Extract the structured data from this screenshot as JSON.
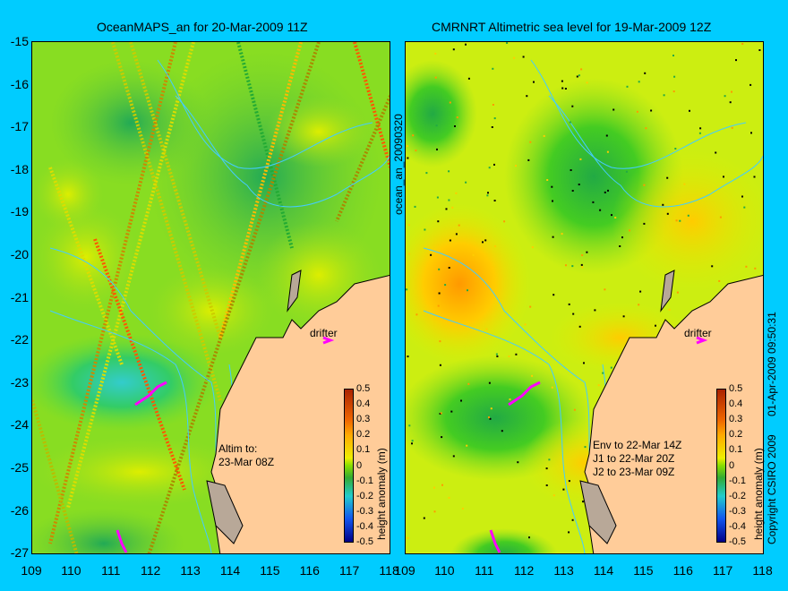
{
  "left_panel": {
    "title": "OceanMAPS_an for 20-Mar-2009 11Z",
    "drifter_label": "drifter",
    "annotation": "Altim to:\n23-Mar 08Z",
    "side_label": "ocean_an_20090320"
  },
  "right_panel": {
    "title": "CMRNRT Altimetric sea level  for 19-Mar-2009 12Z",
    "drifter_label": "drifter",
    "annotation": "Env to 22-Mar 14Z\nJ1 to 22-Mar 20Z\nJ2 to 23-Mar 09Z",
    "side_label": "01-Apr-2009 09:50:31",
    "copyright": "Copyright CSIRO 2009"
  },
  "axes": {
    "y_ticks": [
      "-15",
      "-16",
      "-17",
      "-18",
      "-19",
      "-20",
      "-21",
      "-22",
      "-23",
      "-24",
      "-25",
      "-26",
      "-27"
    ],
    "x_ticks": [
      "109",
      "110",
      "111",
      "112",
      "113",
      "114",
      "115",
      "116",
      "117",
      "118"
    ]
  },
  "colorbar": {
    "label": "height anomaly (m)",
    "ticks": [
      "0.5",
      "0.4",
      "0.3",
      "0.2",
      "0.1",
      "0",
      "-0.1",
      "-0.2",
      "-0.3",
      "-0.4",
      "-0.5"
    ]
  },
  "colors": {
    "land": "#ffcc99",
    "background": "#00ccff",
    "drifter": "#ff00ff"
  }
}
